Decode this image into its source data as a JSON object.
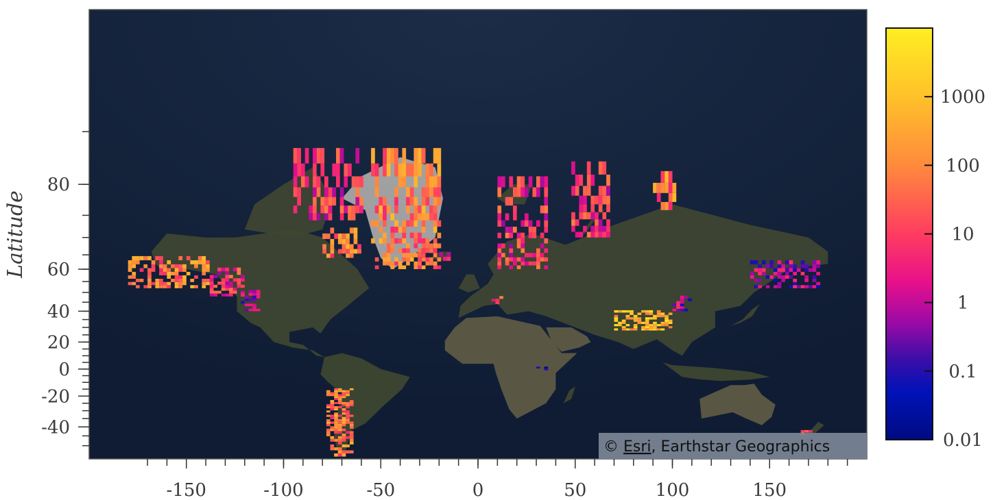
{
  "map": {
    "type": "raster-density-map",
    "basemap": "satellite imagery",
    "attribution": {
      "prefix": "© ",
      "link_text": "Esri",
      "suffix": ", Earthstar Geographics"
    },
    "colors": {
      "ocean": "#0f1c33",
      "land": "#3e4631",
      "desert": "#5e5a44",
      "ice_sheet": "#a8a8a8"
    }
  },
  "axes": {
    "ylabel": "Latitude",
    "xlabel": "",
    "x_range": [
      -200,
      200
    ],
    "x_ticks": [
      -150,
      -100,
      -50,
      0,
      50,
      100,
      150
    ],
    "y_range": [
      -56,
      89
    ],
    "y_projection": "web-mercator",
    "y_ticks": [
      80,
      60,
      40,
      20,
      0,
      -20,
      -40
    ]
  },
  "colorbar": {
    "scale": "log",
    "range": [
      0.01,
      10000
    ],
    "tick_labels": [
      "0.01",
      "0.1",
      "1",
      "10",
      "100",
      "1000"
    ],
    "tick_values": [
      0.01,
      0.1,
      1,
      10,
      100,
      1000
    ],
    "gradient_stops": [
      {
        "value": 0.01,
        "color": "#000b80"
      },
      {
        "value": 0.05,
        "color": "#0012b8"
      },
      {
        "value": 0.15,
        "color": "#3b0ea8"
      },
      {
        "value": 0.5,
        "color": "#9a0aa6"
      },
      {
        "value": 2,
        "color": "#e8108a"
      },
      {
        "value": 10,
        "color": "#ff3c60"
      },
      {
        "value": 100,
        "color": "#ff8a3c"
      },
      {
        "value": 1000,
        "color": "#ffc12a"
      },
      {
        "value": 10000,
        "color": "#ffee22"
      }
    ]
  },
  "chart_data": {
    "type": "heatmap",
    "title": "",
    "ylabel": "Latitude",
    "colorscale": "log",
    "regions": [
      {
        "lon": [
          -180,
          -138
        ],
        "lat": [
          52,
          64
        ],
        "level": 100
      },
      {
        "lon": [
          -138,
          -120
        ],
        "lat": [
          48,
          60
        ],
        "level": 10
      },
      {
        "lon": [
          -122,
          -112
        ],
        "lat": [
          40,
          50
        ],
        "level": 1
      },
      {
        "lon": [
          -95,
          -60
        ],
        "lat": [
          74,
          83
        ],
        "level": 10
      },
      {
        "lon": [
          -80,
          -60
        ],
        "lat": [
          64,
          72
        ],
        "level": 100
      },
      {
        "lon": [
          -55,
          -20
        ],
        "lat": [
          60,
          83
        ],
        "level": 100
      },
      {
        "lon": [
          -20,
          -15
        ],
        "lat": [
          63,
          65
        ],
        "level": 10
      },
      {
        "lon": [
          10,
          35
        ],
        "lat": [
          60,
          80
        ],
        "level": 10
      },
      {
        "lon": [
          48,
          68
        ],
        "lat": [
          70,
          82
        ],
        "level": 10
      },
      {
        "lon": [
          90,
          102
        ],
        "lat": [
          76,
          81
        ],
        "level": 100
      },
      {
        "lon": [
          70,
          100
        ],
        "lat": [
          28,
          40
        ],
        "level": 1000
      },
      {
        "lon": [
          100,
          110
        ],
        "lat": [
          40,
          48
        ],
        "level": 1
      },
      {
        "lon": [
          140,
          175
        ],
        "lat": [
          52,
          62
        ],
        "level": 1
      },
      {
        "lon": [
          -78,
          -65
        ],
        "lat": [
          -55,
          -15
        ],
        "level": 100
      },
      {
        "lon": [
          166,
          172
        ],
        "lat": [
          -46,
          -42
        ],
        "level": 100
      },
      {
        "lon": [
          5,
          15
        ],
        "lat": [
          44,
          48
        ],
        "level": 10
      },
      {
        "lon": [
          28,
          36
        ],
        "lat": [
          -1,
          1
        ],
        "level": 0.1
      }
    ]
  }
}
